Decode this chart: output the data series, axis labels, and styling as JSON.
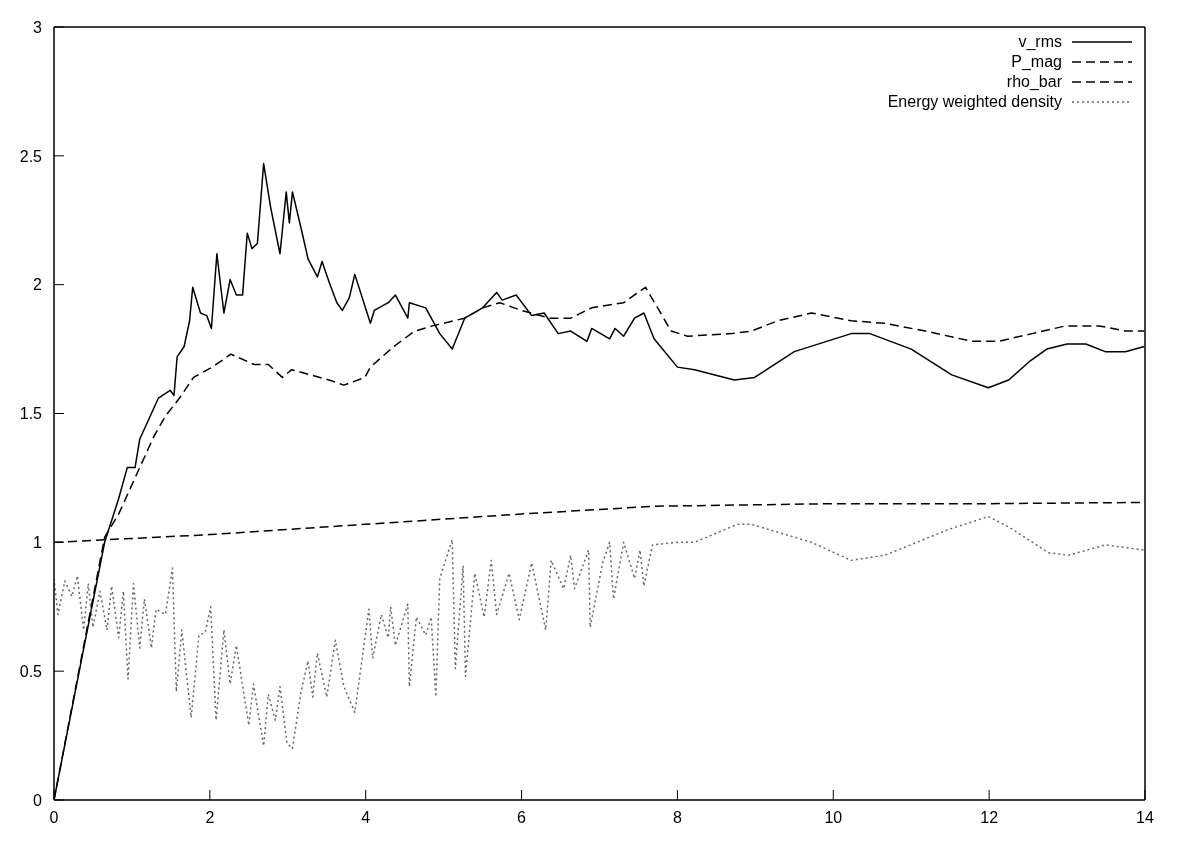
{
  "chart_data": {
    "type": "line",
    "xlim": [
      0,
      14
    ],
    "xticks": [
      0,
      2,
      4,
      6,
      8,
      10,
      12,
      14
    ],
    "ylim": [
      0,
      3
    ],
    "yticks": [
      0,
      0.5,
      1,
      1.5,
      2,
      2.5,
      3
    ],
    "legend": "top right",
    "marker": "none",
    "series": [
      {
        "name": "v_rms",
        "color": "#000000",
        "line_style": "solid",
        "x": [
          0,
          0.35,
          0.65,
          0.83,
          0.94,
          1.04,
          1.1,
          1.25,
          1.34,
          1.49,
          1.54,
          1.58,
          1.67,
          1.74,
          1.78,
          1.88,
          1.96,
          2.02,
          2.09,
          2.18,
          2.26,
          2.34,
          2.42,
          2.48,
          2.54,
          2.61,
          2.69,
          2.78,
          2.9,
          2.98,
          3.02,
          3.06,
          3.17,
          3.26,
          3.38,
          3.44,
          3.53,
          3.63,
          3.7,
          3.79,
          3.86,
          4.06,
          4.11,
          4.29,
          4.38,
          4.54,
          4.56,
          4.77,
          4.95,
          5.11,
          5.27,
          5.5,
          5.68,
          5.75,
          5.93,
          6.13,
          6.29,
          6.47,
          6.63,
          6.84,
          6.9,
          7.13,
          7.2,
          7.31,
          7.45,
          7.57,
          7.7,
          8.0,
          8.22,
          8.73,
          8.99,
          9.5,
          10.23,
          10.47,
          11.0,
          11.52,
          11.99,
          12.25,
          12.51,
          12.74,
          13.0,
          13.24,
          13.49,
          13.75,
          13.99
        ],
        "values": [
          0,
          0.54,
          1.0,
          1.17,
          1.29,
          1.29,
          1.4,
          1.5,
          1.56,
          1.59,
          1.57,
          1.72,
          1.76,
          1.86,
          1.99,
          1.89,
          1.88,
          1.83,
          2.12,
          1.89,
          2.02,
          1.96,
          1.96,
          2.2,
          2.14,
          2.16,
          2.47,
          2.3,
          2.12,
          2.36,
          2.24,
          2.36,
          2.22,
          2.1,
          2.03,
          2.09,
          2.01,
          1.93,
          1.9,
          1.95,
          2.04,
          1.85,
          1.9,
          1.93,
          1.96,
          1.87,
          1.93,
          1.91,
          1.81,
          1.75,
          1.87,
          1.91,
          1.97,
          1.94,
          1.96,
          1.88,
          1.89,
          1.81,
          1.82,
          1.78,
          1.83,
          1.79,
          1.83,
          1.8,
          1.87,
          1.89,
          1.79,
          1.68,
          1.67,
          1.63,
          1.64,
          1.74,
          1.81,
          1.81,
          1.75,
          1.65,
          1.6,
          1.63,
          1.7,
          1.75,
          1.77,
          1.77,
          1.74,
          1.74,
          1.76
        ]
      },
      {
        "name": "P_mag",
        "color": "#000000",
        "line_style": "dashed",
        "x": [
          0,
          0.65,
          0.83,
          1.07,
          1.28,
          1.43,
          1.61,
          1.79,
          2.03,
          2.27,
          2.57,
          2.75,
          2.93,
          3.05,
          3.29,
          3.53,
          3.72,
          3.99,
          4.06,
          4.36,
          4.63,
          4.86,
          5.27,
          5.5,
          5.72,
          6.0,
          6.36,
          6.63,
          6.9,
          7.31,
          7.45,
          7.59,
          7.92,
          8.13,
          8.69,
          8.95,
          9.29,
          9.72,
          10.23,
          10.66,
          11.18,
          11.78,
          12.12,
          12.55,
          12.98,
          13.41,
          13.75,
          13.99
        ],
        "values": [
          0,
          1.02,
          1.11,
          1.27,
          1.41,
          1.49,
          1.56,
          1.64,
          1.68,
          1.73,
          1.69,
          1.69,
          1.64,
          1.67,
          1.65,
          1.63,
          1.61,
          1.64,
          1.68,
          1.76,
          1.82,
          1.84,
          1.87,
          1.91,
          1.93,
          1.9,
          1.87,
          1.87,
          1.91,
          1.93,
          1.96,
          1.99,
          1.82,
          1.8,
          1.81,
          1.82,
          1.86,
          1.89,
          1.86,
          1.85,
          1.82,
          1.78,
          1.78,
          1.81,
          1.84,
          1.84,
          1.82,
          1.82
        ]
      },
      {
        "name": "rho_bar",
        "color": "#000000",
        "line_style": "dashed",
        "x": [
          0,
          2,
          4,
          6,
          7.7,
          10,
          12,
          14
        ],
        "values": [
          1.0,
          1.03,
          1.07,
          1.11,
          1.14,
          1.15,
          1.15,
          1.155
        ]
      },
      {
        "name": "Energy weighted density",
        "color": "#666666",
        "line_style": "dotted",
        "x": [
          0,
          0.05,
          0.14,
          0.23,
          0.3,
          0.38,
          0.44,
          0.5,
          0.59,
          0.68,
          0.74,
          0.83,
          0.89,
          0.95,
          1.02,
          1.1,
          1.16,
          1.25,
          1.31,
          1.43,
          1.52,
          1.57,
          1.64,
          1.76,
          1.86,
          1.94,
          2.01,
          2.08,
          2.18,
          2.26,
          2.34,
          2.5,
          2.56,
          2.69,
          2.75,
          2.84,
          2.9,
          2.99,
          3.06,
          3.17,
          3.26,
          3.32,
          3.38,
          3.5,
          3.61,
          3.72,
          3.86,
          4.04,
          4.09,
          4.2,
          4.29,
          4.32,
          4.38,
          4.54,
          4.56,
          4.65,
          4.77,
          4.84,
          4.9,
          4.95,
          5.11,
          5.15,
          5.25,
          5.28,
          5.4,
          5.52,
          5.61,
          5.68,
          5.84,
          5.97,
          6.13,
          6.31,
          6.38,
          6.54,
          6.63,
          6.68,
          6.86,
          6.88,
          7.04,
          7.13,
          7.18,
          7.31,
          7.45,
          7.52,
          7.57,
          7.68,
          8.0,
          8.22,
          8.77,
          8.95,
          9.72,
          10.23,
          10.66,
          11.48,
          11.99,
          12.25,
          12.76,
          13.02,
          13.49,
          13.99
        ],
        "values": [
          0.86,
          0.72,
          0.85,
          0.79,
          0.87,
          0.66,
          0.84,
          0.67,
          0.81,
          0.66,
          0.83,
          0.63,
          0.81,
          0.47,
          0.84,
          0.59,
          0.78,
          0.59,
          0.74,
          0.72,
          0.9,
          0.42,
          0.66,
          0.32,
          0.64,
          0.65,
          0.75,
          0.31,
          0.66,
          0.45,
          0.6,
          0.29,
          0.45,
          0.21,
          0.41,
          0.31,
          0.44,
          0.22,
          0.2,
          0.42,
          0.54,
          0.4,
          0.57,
          0.4,
          0.62,
          0.44,
          0.34,
          0.74,
          0.55,
          0.72,
          0.63,
          0.75,
          0.6,
          0.76,
          0.44,
          0.71,
          0.64,
          0.71,
          0.4,
          0.86,
          1.01,
          0.51,
          0.91,
          0.48,
          0.88,
          0.71,
          0.93,
          0.72,
          0.88,
          0.7,
          0.92,
          0.66,
          0.93,
          0.82,
          0.95,
          0.82,
          0.97,
          0.67,
          0.92,
          1.0,
          0.78,
          1.0,
          0.86,
          0.97,
          0.83,
          0.99,
          1.0,
          1.0,
          1.07,
          1.07,
          1.0,
          0.93,
          0.95,
          1.05,
          1.1,
          1.06,
          0.96,
          0.95,
          0.99,
          0.97
        ]
      }
    ]
  }
}
